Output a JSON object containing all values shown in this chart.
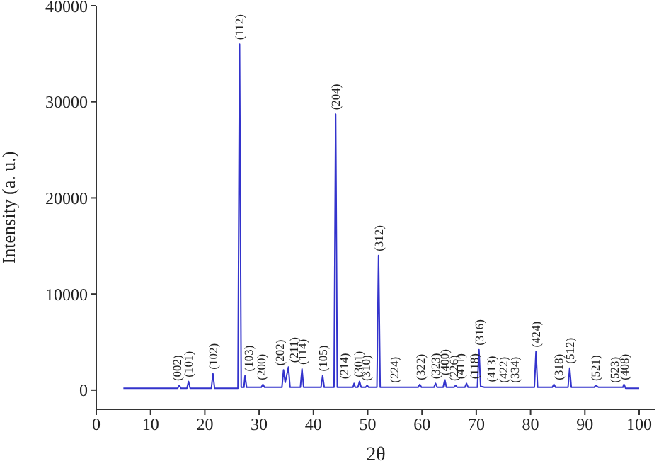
{
  "chart_data": {
    "type": "line",
    "xlabel": "2θ",
    "ylabel": "Intensity (a. u.)",
    "xlim": [
      0,
      103
    ],
    "xticks": [
      0,
      10,
      20,
      30,
      40,
      50,
      60,
      70,
      80,
      90,
      100
    ],
    "ylim": [
      -2000,
      40000
    ],
    "yticks": [
      0,
      10000,
      20000,
      30000,
      40000
    ],
    "grid": false,
    "legend": false,
    "marker": "none",
    "line_style": "solid",
    "series": [
      {
        "color": "#3333cc",
        "x": [
          5,
          15.0,
          15.3,
          15.6,
          16.7,
          17.0,
          17.3,
          21.2,
          21.5,
          21.8,
          26.1,
          26.4,
          26.7,
          27.2,
          27.4,
          27.7,
          30.4,
          30.7,
          31.0,
          34.2,
          34.5,
          34.8,
          35.4,
          35.7,
          37.6,
          37.9,
          38.2,
          41.4,
          41.7,
          42.0,
          43.8,
          44.1,
          44.4,
          47.3,
          47.5,
          47.7,
          48.2,
          48.5,
          48.8,
          49.6,
          49.9,
          50.2,
          51.7,
          52.0,
          52.3,
          59.3,
          59.6,
          59.9,
          62.2,
          62.5,
          62.8,
          63.9,
          64.2,
          64.5,
          65.9,
          66.2,
          66.5,
          67.9,
          68.2,
          68.5,
          70.2,
          70.5,
          70.8,
          71.5,
          80.7,
          81.0,
          81.3,
          84.0,
          84.3,
          84.6,
          86.9,
          87.2,
          87.5,
          91.7,
          92.0,
          92.5,
          97.0,
          97.2,
          97.5,
          100
        ],
        "values": [
          200,
          200,
          500,
          200,
          200,
          900,
          200,
          200,
          1700,
          200,
          200,
          36000,
          300,
          300,
          1500,
          300,
          300,
          600,
          300,
          300,
          2100,
          800,
          2400,
          300,
          300,
          2200,
          300,
          300,
          1500,
          300,
          300,
          28700,
          300,
          300,
          700,
          300,
          300,
          900,
          300,
          300,
          500,
          300,
          300,
          14000,
          300,
          300,
          600,
          300,
          300,
          700,
          300,
          300,
          1100,
          300,
          300,
          500,
          300,
          300,
          700,
          300,
          300,
          4200,
          400,
          300,
          300,
          4000,
          300,
          300,
          600,
          300,
          300,
          2300,
          300,
          300,
          500,
          300,
          300,
          600,
          200,
          200
        ]
      }
    ],
    "annotations": [
      {
        "text": "(002)",
        "x": 14.8,
        "y": 500
      },
      {
        "text": "(101)",
        "x": 17.0,
        "y": 900
      },
      {
        "text": "(102)",
        "x": 21.5,
        "y": 1700
      },
      {
        "text": "(112)",
        "x": 26.4,
        "y": 36000
      },
      {
        "text": "(103)",
        "x": 28.0,
        "y": 1500
      },
      {
        "text": "(200)",
        "x": 30.4,
        "y": 600
      },
      {
        "text": "(202)",
        "x": 34.5,
        "y": 2100
      },
      {
        "text": "(211)",
        "x": 35.6,
        "y": 2400
      },
      {
        "text": "(114)",
        "x": 38.0,
        "y": 2200
      },
      {
        "text": "(105)",
        "x": 41.7,
        "y": 1500
      },
      {
        "text": "(204)",
        "x": 44.1,
        "y": 28700
      },
      {
        "text": "(214)",
        "x": 46.4,
        "y": 700
      },
      {
        "text": "(301)",
        "x": 47.5,
        "y": 900
      },
      {
        "text": "(310)",
        "x": 49.7,
        "y": 500
      },
      {
        "text": "(312)",
        "x": 52.0,
        "y": 14000
      },
      {
        "text": "(224)",
        "x": 54.9,
        "y": 300
      },
      {
        "text": "(322)",
        "x": 59.7,
        "y": 600
      },
      {
        "text": "(323)",
        "x": 62.4,
        "y": 700
      },
      {
        "text": "(400)",
        "x": 64.2,
        "y": 1100
      },
      {
        "text": "(226)",
        "x": 65.9,
        "y": 500
      },
      {
        "text": "(411)",
        "x": 67.8,
        "y": 700
      },
      {
        "text": "(118)",
        "x": 68.9,
        "y": 700
      },
      {
        "text": "(316)",
        "x": 70.5,
        "y": 4200
      },
      {
        "text": "(413)",
        "x": 72.8,
        "y": 400
      },
      {
        "text": "(422)",
        "x": 75.0,
        "y": 300
      },
      {
        "text": "(334)",
        "x": 77.1,
        "y": 300
      },
      {
        "text": "(424)",
        "x": 81.0,
        "y": 4000
      },
      {
        "text": "(318)",
        "x": 85.1,
        "y": 600
      },
      {
        "text": "(512)",
        "x": 87.2,
        "y": 2300
      },
      {
        "text": "(521)",
        "x": 91.9,
        "y": 500
      },
      {
        "text": "(523)",
        "x": 95.5,
        "y": 300
      },
      {
        "text": "(408)",
        "x": 97.2,
        "y": 600
      }
    ]
  }
}
